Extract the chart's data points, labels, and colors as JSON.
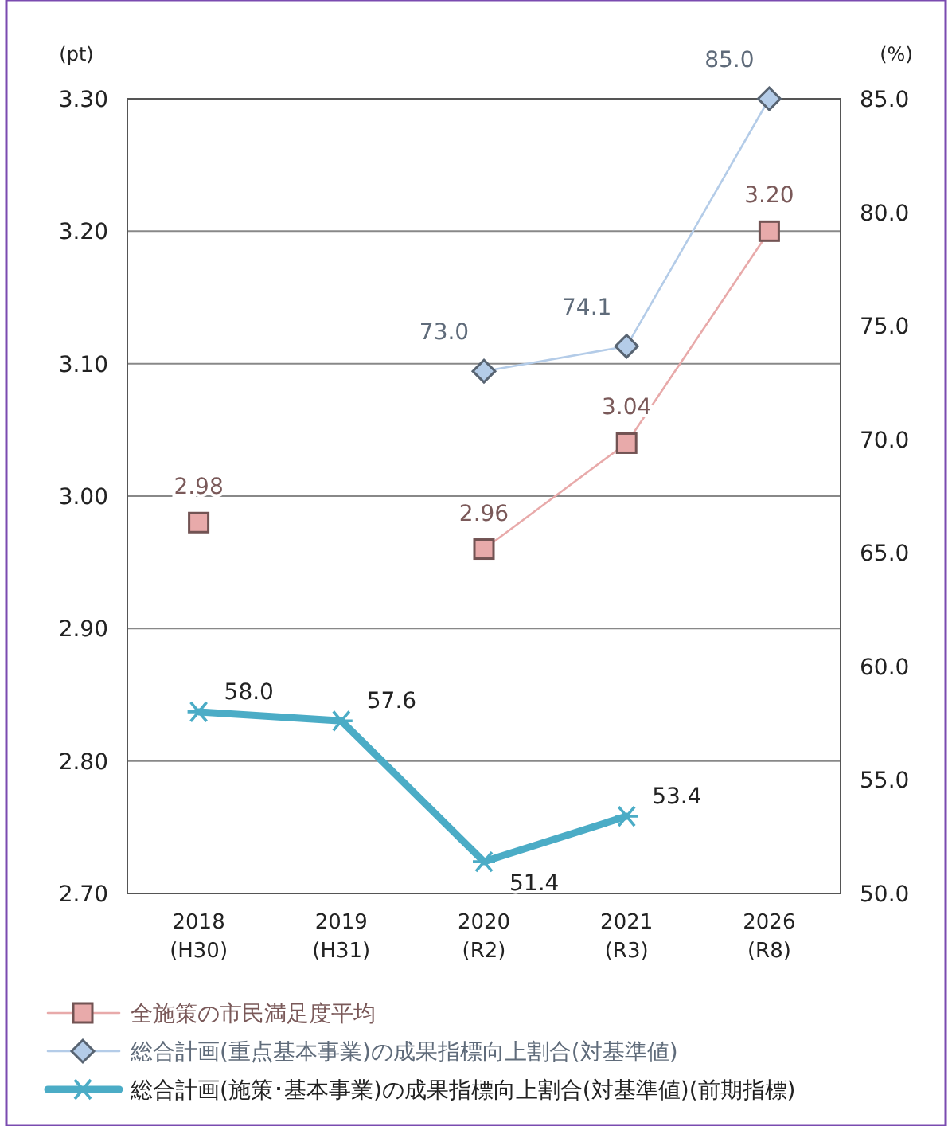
{
  "chart_data": {
    "type": "line",
    "categories": [
      "2018\n(H30)",
      "2019\n(H31)",
      "2020\n(R2)",
      "2021\n(R3)",
      "2026\n(R8)"
    ],
    "ylabel": "(pt)",
    "y2label": "(%)",
    "ylim": [
      2.7,
      3.3
    ],
    "yticks": [
      {
        "value": 2.7,
        "label": "2.70"
      },
      {
        "value": 2.8,
        "label": "2.80"
      },
      {
        "value": 2.9,
        "label": "2.90"
      },
      {
        "value": 3.0,
        "label": "3.00"
      },
      {
        "value": 3.1,
        "label": "3.10"
      },
      {
        "value": 3.2,
        "label": "3.20"
      },
      {
        "value": 3.3,
        "label": "3.30"
      }
    ],
    "y2lim": [
      50,
      85
    ],
    "y2ticks": [
      {
        "value": 50,
        "label": "50.0"
      },
      {
        "value": 55,
        "label": "55.0"
      },
      {
        "value": 60,
        "label": "60.0"
      },
      {
        "value": 65,
        "label": "65.0"
      },
      {
        "value": 70,
        "label": "70.0"
      },
      {
        "value": 75,
        "label": "75.0"
      },
      {
        "value": 80,
        "label": "80.0"
      },
      {
        "value": 85,
        "label": "85.0"
      }
    ],
    "grid": "y",
    "legend": "bottom",
    "series": [
      {
        "name": "全施策の市民満足度平均",
        "color": "#e8aaaa",
        "marker": "square",
        "values": [
          2.98,
          null,
          2.96,
          3.04,
          3.2
        ],
        "value_labels": [
          "2.98",
          null,
          "2.96",
          "3.04",
          "3.20"
        ]
      },
      {
        "name": "総合計画(重点基本事業)の成果指標向上割合(対基準値)",
        "color": "#b4cce8",
        "marker": "diamond",
        "axis": "y2",
        "values": [
          null,
          null,
          73.0,
          74.1,
          85.0
        ],
        "value_labels": [
          null,
          null,
          "73.0",
          "74.1",
          "85.0"
        ]
      },
      {
        "name": "総合計画(施策･基本事業)の成果指標向上割合(対基準値)(前期指標)",
        "color": "#4bacc6",
        "marker": "cross",
        "axis": "y2",
        "values": [
          58.0,
          57.6,
          51.4,
          53.4,
          null
        ],
        "value_labels": [
          "58.0",
          "57.6",
          "51.4",
          "53.4",
          null
        ]
      }
    ]
  }
}
